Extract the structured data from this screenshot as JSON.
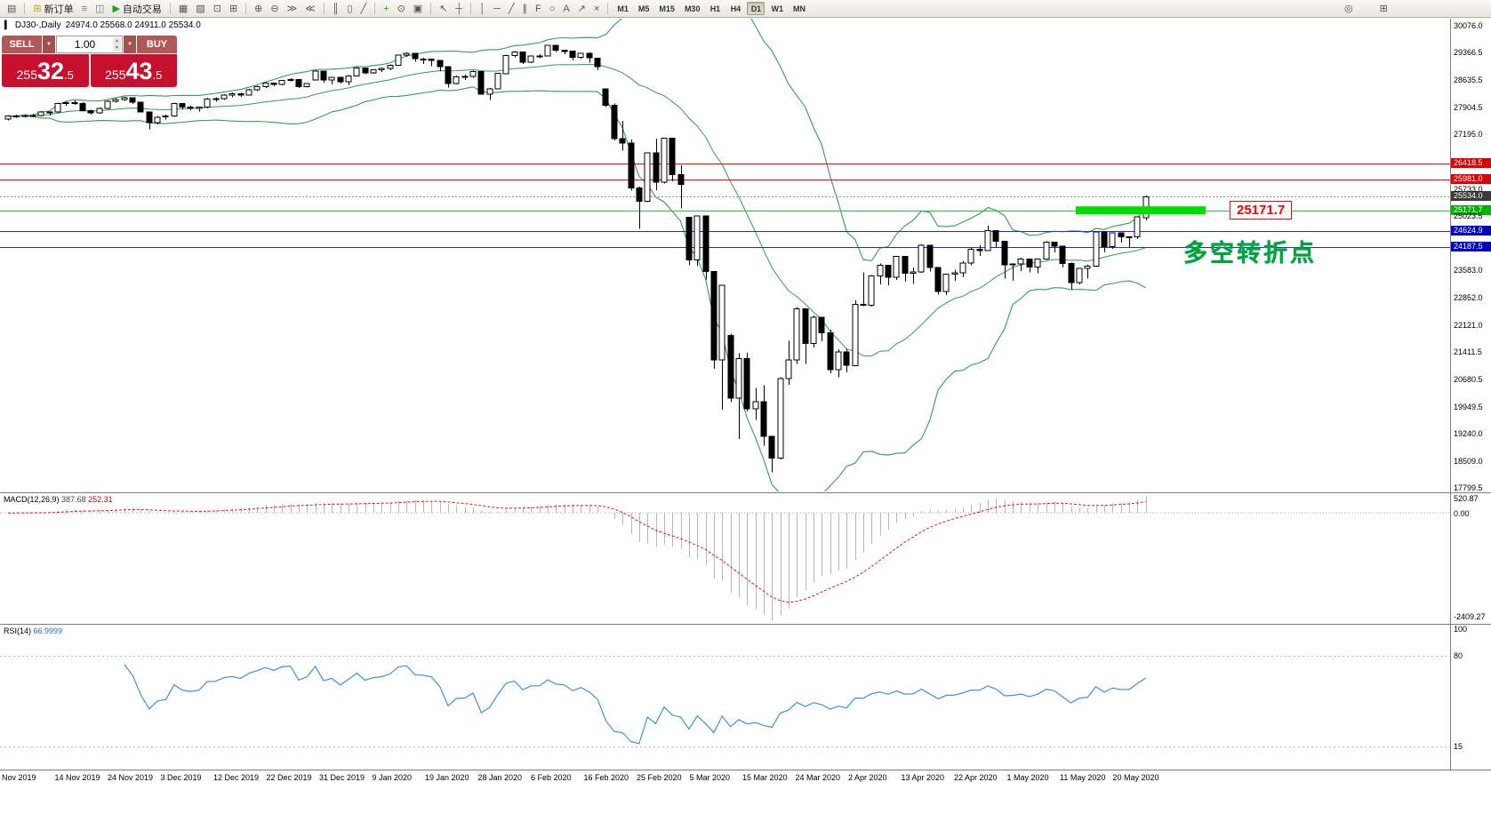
{
  "toolbar": {
    "groups": [
      {
        "items": [
          {
            "name": "chart-window-icon",
            "glyph": "▤"
          }
        ]
      },
      {
        "items": [
          {
            "name": "new-order-button",
            "glyph": "⊞",
            "color": "#c8a415",
            "label": "新订单"
          },
          {
            "name": "market-watch-icon",
            "glyph": "≡",
            "color": "#7a7468"
          },
          {
            "name": "data-window-icon",
            "glyph": "◫",
            "color": "#7a7468"
          },
          {
            "name": "auto-trading-button",
            "glyph": "▶",
            "color": "#1ba11b",
            "label": "自动交易"
          }
        ]
      },
      {
        "items": [
          {
            "name": "new-chart-icon",
            "glyph": "▦"
          },
          {
            "name": "profiles-icon",
            "glyph": "▨"
          },
          {
            "name": "cascade-windows-icon",
            "glyph": "⊡"
          },
          {
            "name": "tile-windows-icon",
            "glyph": "⊞"
          }
        ]
      },
      {
        "items": [
          {
            "name": "zoom-in-icon",
            "glyph": "⊕"
          },
          {
            "name": "zoom-out-icon",
            "glyph": "⊖"
          },
          {
            "name": "auto-scroll-icon",
            "glyph": "≫"
          },
          {
            "name": "chart-shift-icon",
            "glyph": "≪"
          }
        ]
      },
      {
        "items": [
          {
            "name": "bar-chart-icon",
            "glyph": "║"
          },
          {
            "name": "candlestick-chart-icon",
            "glyph": "▯"
          },
          {
            "name": "line-chart-icon",
            "glyph": "╱"
          }
        ]
      },
      {
        "items": [
          {
            "name": "indicators-add-icon",
            "glyph": "+",
            "color": "#1a9a1a"
          },
          {
            "name": "periods-icon",
            "glyph": "⊙"
          },
          {
            "name": "templates-icon",
            "glyph": "▣"
          }
        ]
      },
      {
        "items": [
          {
            "name": "cursor-icon",
            "glyph": "↖"
          },
          {
            "name": "crosshair-icon",
            "glyph": "┼"
          }
        ]
      },
      {
        "items": [
          {
            "name": "vertical-line-icon",
            "glyph": "│"
          },
          {
            "name": "horizontal-line-icon",
            "glyph": "─"
          },
          {
            "name": "trendline-icon",
            "glyph": "╱"
          },
          {
            "name": "channel-icon",
            "glyph": "∥"
          },
          {
            "name": "fibonacci-icon",
            "glyph": "F"
          },
          {
            "name": "shapes-icon",
            "glyph": "○"
          },
          {
            "name": "text-icon",
            "glyph": "A"
          },
          {
            "name": "arrow-tools-icon",
            "glyph": "↗"
          },
          {
            "name": "delete-objects-icon",
            "glyph": "×"
          }
        ]
      }
    ],
    "timeframes": {
      "list": [
        "M1",
        "M5",
        "M15",
        "M30",
        "H1",
        "H4",
        "D1",
        "W1",
        "MN"
      ],
      "active": "D1"
    },
    "right_items": [
      {
        "name": "search-icon",
        "glyph": "◎"
      },
      {
        "name": "new-window-icon",
        "glyph": "⊞"
      }
    ]
  },
  "chart_header": {
    "icon_glyph": "▍",
    "title": "DJ30-,Daily",
    "ohlc": "24974.0 25568.0 24911.0 25534.0"
  },
  "trade_panel": {
    "sell_label": "SELL",
    "buy_label": "BUY",
    "volume": "1.00",
    "dropdown_glyph": "▼",
    "spinner_up": "▲",
    "spinner_down": "▼",
    "sell_price": {
      "head": "255",
      "big": "32",
      "tail": ".5"
    },
    "buy_price": {
      "head": "255",
      "big": "43",
      "tail": ".5"
    }
  },
  "price_axis": {
    "labels": [
      "30076.0",
      "29366.5",
      "28635.5",
      "27904.5",
      "27195.0",
      "25733.0",
      "25023.5",
      "23583.0",
      "22852.0",
      "22121.0",
      "21411.5",
      "20680.5",
      "19949.5",
      "19240.0",
      "18509.0",
      "17799.5"
    ],
    "badges": [
      {
        "text": "26418.5",
        "bg": "#e00000",
        "line": "solid",
        "line_color": "#ff0000"
      },
      {
        "text": "25981.0",
        "bg": "#e00000",
        "line": "solid",
        "line_color": "#ff0000"
      },
      {
        "text": "25534.0",
        "bg": "#3a3a3a",
        "line": "dotted",
        "line_color": "#979797"
      },
      {
        "text": "25171.7",
        "bg": "#00b400",
        "line": "solid",
        "line_color": "#2ec52e"
      },
      {
        "text": "24624.9",
        "bg": "#0000cd",
        "line": "solid",
        "line_color": "#2424ff"
      },
      {
        "text": "24187.5",
        "bg": "#0000cd",
        "line": "solid",
        "line_color": "#2424ff"
      }
    ]
  },
  "annotations": {
    "price_label": "25171.7",
    "note": "多空转折点",
    "highlight": {
      "price": 25171.7,
      "color": "#00dd00"
    }
  },
  "macd_panel": {
    "name": "MACD(12,26,9)",
    "value_main": "387.68",
    "value_signal": "252.31",
    "axis_max": "520.87",
    "axis_zero": "0.00",
    "axis_min": "-2409.27"
  },
  "rsi_panel": {
    "name": "RSI(14)",
    "value": "66.9999",
    "axis_top": "100",
    "levels": [
      {
        "value": 80,
        "label": "80"
      },
      {
        "value": 15,
        "label": "15"
      }
    ]
  },
  "chart_data": {
    "type": "candlestick",
    "symbol": "DJ30-",
    "period": "Daily",
    "ylim": [
      17799.5,
      30076.0
    ],
    "last_ohlc": [
      24974.0,
      25568.0,
      24911.0,
      25534.0
    ],
    "x_labels": [
      "Nov 2019",
      "14 Nov 2019",
      "24 Nov 2019",
      "3 Dec 2019",
      "12 Dec 2019",
      "22 Dec 2019",
      "31 Dec 2019",
      "9 Jan 2020",
      "19 Jan 2020",
      "28 Jan 2020",
      "6 Feb 2020",
      "16 Feb 2020",
      "25 Feb 2020",
      "5 Mar 2020",
      "15 Mar 2020",
      "24 Mar 2020",
      "2 Apr 2020",
      "13 Apr 2020",
      "22 Apr 2020",
      "1 May 2020",
      "11 May 2020",
      "20 May 2020"
    ],
    "overlays": [
      {
        "name": "Bollinger Bands",
        "period": 20,
        "deviation": 2,
        "color": "#2f9e54"
      }
    ],
    "h_lines": [
      {
        "price": 26418.5,
        "color": "red"
      },
      {
        "price": 25981.0,
        "color": "red"
      },
      {
        "price": 25534.0,
        "color": "gray-dotted"
      },
      {
        "price": 25171.7,
        "color": "green"
      },
      {
        "price": 24624.9,
        "color": "blue"
      },
      {
        "price": 24187.5,
        "color": "blue"
      }
    ],
    "indicators": [
      {
        "name": "MACD",
        "params": [
          12,
          26,
          9
        ],
        "display_values": [
          387.68,
          252.31
        ],
        "axis": [
          520.87,
          0.0,
          -2409.27
        ],
        "histogram_color": "#b6b6b6",
        "signal_color": "#e81212"
      },
      {
        "name": "RSI",
        "params": [
          14
        ],
        "display_value": 66.9999,
        "range": [
          0,
          100
        ],
        "levels": [
          80,
          15
        ],
        "color": "#3d8fe0"
      }
    ],
    "candles": [
      [
        27600,
        27700,
        27560,
        27675
      ],
      [
        27675,
        27720,
        27630,
        27681
      ],
      [
        27681,
        27730,
        27640,
        27691
      ],
      [
        27691,
        27740,
        27650,
        27691
      ],
      [
        27691,
        27810,
        27670,
        27784
      ],
      [
        27784,
        27800,
        27690,
        27782
      ],
      [
        27782,
        28030,
        27770,
        28005
      ],
      [
        28005,
        28060,
        27950,
        28036
      ],
      [
        28036,
        28090,
        27980,
        28012
      ],
      [
        28012,
        28040,
        27800,
        27821
      ],
      [
        27821,
        27850,
        27710,
        27766
      ],
      [
        27766,
        27900,
        27740,
        27875
      ],
      [
        27875,
        28090,
        27860,
        28066
      ],
      [
        28066,
        28150,
        28030,
        28121
      ],
      [
        28121,
        28190,
        28080,
        28164
      ],
      [
        28164,
        28180,
        28000,
        28051
      ],
      [
        28051,
        28060,
        27770,
        27783
      ],
      [
        27783,
        27800,
        27325,
        27503
      ],
      [
        27503,
        27680,
        27460,
        27650
      ],
      [
        27650,
        27720,
        27580,
        27677
      ],
      [
        27677,
        28035,
        27660,
        28015
      ],
      [
        28015,
        28020,
        27850,
        27910
      ],
      [
        27910,
        27950,
        27830,
        27882
      ],
      [
        27882,
        27930,
        27800,
        27911
      ],
      [
        27911,
        28160,
        27880,
        28132
      ],
      [
        28132,
        28180,
        28060,
        28135
      ],
      [
        28135,
        28260,
        28100,
        28236
      ],
      [
        28236,
        28300,
        28180,
        28267
      ],
      [
        28267,
        28290,
        28190,
        28239
      ],
      [
        28239,
        28400,
        28220,
        28377
      ],
      [
        28377,
        28480,
        28340,
        28455
      ],
      [
        28455,
        28580,
        28420,
        28551
      ],
      [
        28551,
        28570,
        28470,
        28516
      ],
      [
        28516,
        28640,
        28490,
        28621
      ],
      [
        28621,
        28680,
        28600,
        28645
      ],
      [
        28645,
        28650,
        28420,
        28462
      ],
      [
        28462,
        28550,
        28430,
        28538
      ],
      [
        28638,
        28890,
        28630,
        28869
      ],
      [
        28869,
        28870,
        28560,
        28635
      ],
      [
        28635,
        28720,
        28520,
        28703
      ],
      [
        28703,
        28710,
        28540,
        28584
      ],
      [
        28584,
        28760,
        28500,
        28745
      ],
      [
        28745,
        28980,
        28730,
        28957
      ],
      [
        28957,
        28960,
        28790,
        28824
      ],
      [
        28824,
        28920,
        28800,
        28907
      ],
      [
        28907,
        28970,
        28850,
        28939
      ],
      [
        28939,
        29050,
        28900,
        29030
      ],
      [
        29030,
        29310,
        29010,
        29298
      ],
      [
        29298,
        29370,
        29250,
        29348
      ],
      [
        29348,
        29350,
        29120,
        29196
      ],
      [
        29196,
        29230,
        29060,
        29186
      ],
      [
        29186,
        29200,
        29000,
        29160
      ],
      [
        29160,
        29170,
        28870,
        28990
      ],
      [
        28990,
        29000,
        28440,
        28536
      ],
      [
        28536,
        28750,
        28520,
        28723
      ],
      [
        28723,
        28780,
        28630,
        28734
      ],
      [
        28734,
        28890,
        28700,
        28859
      ],
      [
        28859,
        28860,
        28250,
        28256
      ],
      [
        28256,
        28420,
        28100,
        28400
      ],
      [
        28400,
        28830,
        28390,
        28808
      ],
      [
        28808,
        29310,
        28800,
        29291
      ],
      [
        29291,
        29400,
        29240,
        29380
      ],
      [
        29380,
        29390,
        29060,
        29103
      ],
      [
        29103,
        29290,
        29080,
        29277
      ],
      [
        29277,
        29320,
        29210,
        29276
      ],
      [
        29276,
        29560,
        29260,
        29551
      ],
      [
        29551,
        29570,
        29380,
        29423
      ],
      [
        29423,
        29440,
        29320,
        29398
      ],
      [
        29398,
        29420,
        29150,
        29232
      ],
      [
        29232,
        29360,
        29200,
        29348
      ],
      [
        29348,
        29370,
        29100,
        29220
      ],
      [
        29220,
        29230,
        28890,
        28992
      ],
      [
        28402,
        28410,
        27910,
        27961
      ],
      [
        27961,
        28010,
        27030,
        27081
      ],
      [
        27081,
        27550,
        26760,
        26958
      ],
      [
        26958,
        27050,
        25700,
        25767
      ],
      [
        25767,
        25800,
        24680,
        25409
      ],
      [
        25409,
        26710,
        25390,
        26703
      ],
      [
        26703,
        27080,
        25710,
        25917
      ],
      [
        25917,
        27100,
        25880,
        27090
      ],
      [
        27090,
        27100,
        25940,
        26121
      ],
      [
        26121,
        26370,
        25220,
        25865
      ],
      [
        24992,
        25000,
        23710,
        23851
      ],
      [
        23851,
        25020,
        23690,
        25018
      ],
      [
        25018,
        25030,
        23330,
        23553
      ],
      [
        23553,
        23560,
        20960,
        21200
      ],
      [
        21200,
        23190,
        19880,
        23186
      ],
      [
        21850,
        21900,
        20080,
        20188
      ],
      [
        20188,
        21380,
        19100,
        21237
      ],
      [
        21237,
        21390,
        19830,
        19899
      ],
      [
        19899,
        20450,
        19610,
        20087
      ],
      [
        20087,
        20530,
        18917,
        19174
      ],
      [
        19174,
        19180,
        18213,
        18592
      ],
      [
        18592,
        20740,
        18560,
        20705
      ],
      [
        20705,
        21710,
        20540,
        21200
      ],
      [
        21200,
        22600,
        21090,
        22552
      ],
      [
        22552,
        22560,
        21090,
        21637
      ],
      [
        21637,
        22380,
        21530,
        22327
      ],
      [
        22327,
        22330,
        21700,
        21917
      ],
      [
        21917,
        22000,
        20840,
        20943
      ],
      [
        20943,
        21480,
        20740,
        21413
      ],
      [
        21413,
        21490,
        20870,
        21052
      ],
      [
        21052,
        22780,
        21030,
        22680
      ],
      [
        22680,
        23520,
        22630,
        22654
      ],
      [
        22654,
        23450,
        22620,
        23434
      ],
      [
        23434,
        23760,
        23200,
        23719
      ],
      [
        23719,
        23730,
        23180,
        23391
      ],
      [
        23391,
        23960,
        23320,
        23950
      ],
      [
        23950,
        23960,
        23280,
        23504
      ],
      [
        23504,
        23650,
        23220,
        23537
      ],
      [
        23537,
        24270,
        23510,
        24242
      ],
      [
        24242,
        24250,
        23550,
        23650
      ],
      [
        23650,
        23660,
        22940,
        23018
      ],
      [
        23018,
        23490,
        22920,
        23475
      ],
      [
        23475,
        23590,
        23300,
        23515
      ],
      [
        23515,
        23830,
        23400,
        23775
      ],
      [
        23775,
        24170,
        23710,
        24134
      ],
      [
        24134,
        24250,
        23960,
        24102
      ],
      [
        24102,
        24760,
        24090,
        24634
      ],
      [
        24634,
        24640,
        24200,
        24346
      ],
      [
        24346,
        24350,
        23360,
        23724
      ],
      [
        23724,
        23730,
        23300,
        23749
      ],
      [
        23749,
        23920,
        23560,
        23883
      ],
      [
        23883,
        23890,
        23530,
        23665
      ],
      [
        23665,
        23890,
        23500,
        23876
      ],
      [
        23876,
        24350,
        23850,
        24331
      ],
      [
        24331,
        24340,
        24050,
        24222
      ],
      [
        24222,
        24230,
        23650,
        23765
      ],
      [
        23765,
        23780,
        23070,
        23248
      ],
      [
        23248,
        23640,
        23210,
        23625
      ],
      [
        23625,
        23730,
        23360,
        23685
      ],
      [
        23685,
        24600,
        23670,
        24597
      ],
      [
        24597,
        24600,
        24060,
        24207
      ],
      [
        24207,
        24580,
        24150,
        24576
      ],
      [
        24576,
        24580,
        24310,
        24474
      ],
      [
        24474,
        24480,
        24200,
        24465
      ],
      [
        24465,
        25000,
        24410,
        24995
      ],
      [
        24974,
        25568,
        24911,
        25534
      ]
    ]
  }
}
